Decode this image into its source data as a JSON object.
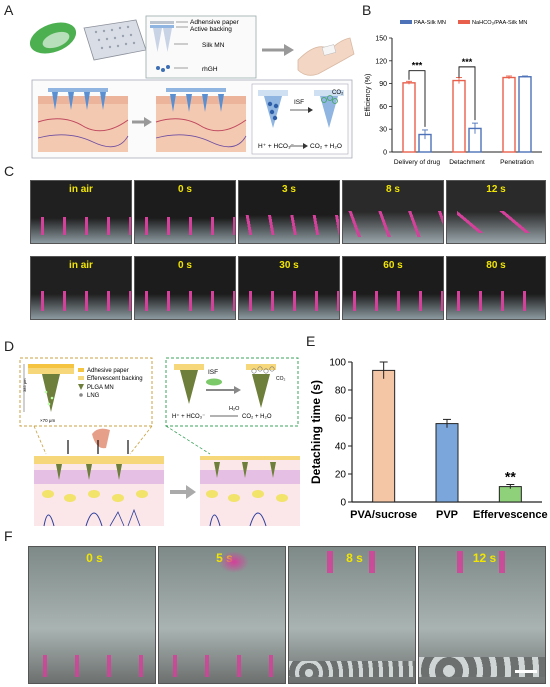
{
  "figure": {
    "panel_labels": {
      "A": "A",
      "B": "B",
      "C": "C",
      "D": "D",
      "E": "E",
      "F": "F"
    }
  },
  "panelA": {
    "layers": [
      "Adhensive paper",
      "Active backing",
      "Silk MN",
      "rhGH"
    ],
    "isf": "ISF",
    "co2": "CO₂",
    "reaction_left": "H⁺ + HCO₃⁻",
    "reaction_right": "CO₂ + H₂O"
  },
  "panelC": {
    "row1": [
      "in air",
      "0 s",
      "3 s",
      "8 s",
      "12 s"
    ],
    "row2": [
      "in air",
      "0 s",
      "30 s",
      "60 s",
      "80 s"
    ]
  },
  "panelD": {
    "legend": [
      "Adhesive paper",
      "Effervescent backing",
      "PLGA MN",
      "LNG"
    ],
    "scale_top": "385 μm",
    "scale_bottom": "×70 μm",
    "isf": "ISF",
    "co2": "CO₂",
    "h2o": "H₂O",
    "reaction_left": "H⁺ + HCO₃⁻",
    "reaction_right": "CO₂ + H₂O"
  },
  "panelF": {
    "frames": [
      "0 s",
      "5 s",
      "8 s",
      "12 s"
    ]
  },
  "colors": {
    "paa": "#4e72b8",
    "nahco3": "#e8604c",
    "pva": "#f5c6a5",
    "pvp": "#7aa6dc",
    "effervescence": "#8fd17a",
    "magenta": "#d4409a",
    "dashed_frame": "#c8a040"
  },
  "chart_data": [
    {
      "id": "B",
      "type": "bar",
      "categories": [
        "Delivery of drug",
        "Detachment",
        "Penetration"
      ],
      "series": [
        {
          "name": "PAA-Silk MN",
          "values": [
            23,
            31,
            99
          ],
          "errors": [
            6,
            7,
            1
          ]
        },
        {
          "name": "NaHCO₃/PAA-Silk MN",
          "values": [
            91,
            94,
            98
          ],
          "errors": [
            2,
            4,
            2
          ]
        }
      ],
      "ylabel": "Efficiency (%)",
      "ylim": [
        0,
        150
      ],
      "yticks": [
        0,
        30,
        60,
        90,
        120,
        150
      ],
      "significance": [
        "***",
        "***"
      ],
      "legend": "top"
    },
    {
      "id": "E",
      "type": "bar",
      "categories": [
        "PVA/sucrose",
        "PVP",
        "Effervescence"
      ],
      "values": [
        94,
        56,
        11
      ],
      "errors": [
        6,
        3,
        1.5
      ],
      "ylabel": "Detaching time (s)",
      "ylim": [
        0,
        100
      ],
      "yticks": [
        0,
        20,
        40,
        60,
        80,
        100
      ],
      "significance": [
        "",
        "",
        "**"
      ]
    }
  ]
}
